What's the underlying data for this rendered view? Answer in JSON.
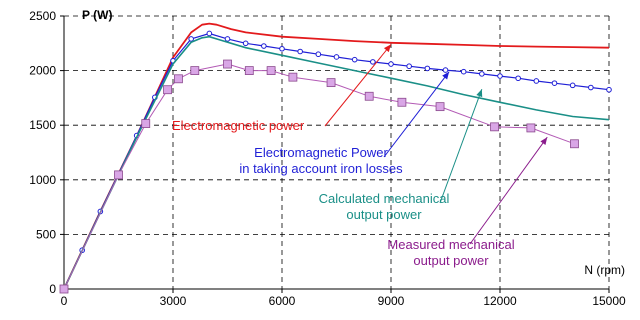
{
  "chart_data": {
    "type": "line",
    "xlabel": "N (rpm)",
    "ylabel": "P (W)",
    "xlim": [
      0,
      15000
    ],
    "ylim": [
      0,
      2500
    ],
    "xticks": [
      0,
      3000,
      6000,
      9000,
      12000,
      15000
    ],
    "yticks": [
      0,
      500,
      1000,
      1500,
      2000,
      2500
    ],
    "grid": {
      "style": "dashed",
      "x": true,
      "y": true
    },
    "series": [
      {
        "name": "Electromagnetic power",
        "color": "#e31a1c",
        "marker": "none",
        "x": [
          0,
          1000,
          2000,
          3000,
          3500,
          3800,
          4000,
          4200,
          4600,
          5000,
          6000,
          7000,
          8000,
          9000,
          10000,
          11000,
          12000,
          13000,
          14000,
          15000
        ],
        "y": [
          0,
          710,
          1400,
          2120,
          2350,
          2420,
          2430,
          2420,
          2380,
          2350,
          2310,
          2290,
          2270,
          2255,
          2245,
          2235,
          2225,
          2220,
          2215,
          2210
        ]
      },
      {
        "name": "Electromagnetic Power in taking account iron losses",
        "color": "#1f1fd6",
        "marker": "circle",
        "x": [
          0,
          500,
          1000,
          1500,
          2000,
          2500,
          3000,
          3500,
          4000,
          4500,
          5000,
          5500,
          6000,
          6500,
          7000,
          7500,
          8000,
          8500,
          9000,
          9500,
          10000,
          10500,
          11000,
          11500,
          12000,
          12500,
          13000,
          13500,
          14000,
          14500,
          15000
        ],
        "y": [
          0,
          355,
          710,
          1055,
          1405,
          1755,
          2090,
          2290,
          2340,
          2290,
          2250,
          2225,
          2200,
          2175,
          2150,
          2125,
          2100,
          2080,
          2060,
          2040,
          2020,
          2005,
          1990,
          1970,
          1950,
          1930,
          1905,
          1885,
          1865,
          1845,
          1825
        ]
      },
      {
        "name": "Calculated mechanical output power",
        "color": "#1a8f87",
        "marker": "none",
        "x": [
          0,
          1000,
          2000,
          3000,
          3500,
          3800,
          4000,
          4300,
          5000,
          6000,
          7000,
          8000,
          9000,
          10000,
          11000,
          12000,
          13000,
          14000,
          15000
        ],
        "y": [
          0,
          700,
          1390,
          2060,
          2260,
          2300,
          2310,
          2280,
          2210,
          2140,
          2070,
          2000,
          1930,
          1860,
          1780,
          1710,
          1640,
          1580,
          1550
        ]
      },
      {
        "name": "Measured mechanical output power",
        "color": "#b35ab5",
        "marker": "square",
        "x": [
          0,
          1500,
          2250,
          2850,
          3150,
          3600,
          4500,
          5100,
          5700,
          6300,
          7350,
          8400,
          9300,
          10350,
          11850,
          12850,
          14050
        ],
        "y": [
          0,
          1045,
          1515,
          1825,
          1925,
          2000,
          2060,
          2000,
          2000,
          1940,
          1890,
          1765,
          1710,
          1670,
          1485,
          1475,
          1330
        ]
      }
    ],
    "annotations": [
      {
        "text": "Electromagnetic power",
        "color": "#e31a1c",
        "arrow_to": [
          9000,
          2240
        ]
      },
      {
        "lines": [
          "Electromagnetic Power",
          "in taking account iron losses"
        ],
        "color": "#1f1fd6",
        "arrow_to": [
          10600,
          1990
        ]
      },
      {
        "lines": [
          "Calculated mechanical",
          "output power"
        ],
        "color": "#1a8f87",
        "arrow_to": [
          11500,
          1830
        ]
      },
      {
        "lines": [
          "Measured mechanical",
          "output power"
        ],
        "color": "#8b1c8c",
        "arrow_to": [
          13300,
          1390
        ]
      }
    ]
  }
}
